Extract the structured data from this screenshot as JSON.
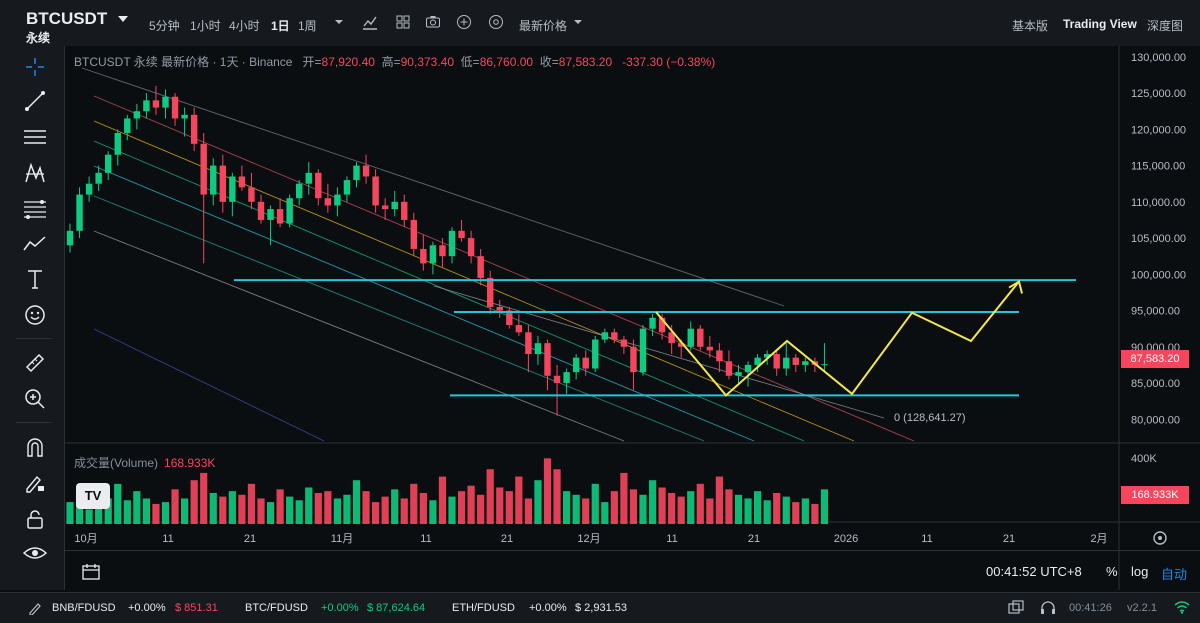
{
  "header": {
    "symbol": "BTCUSDT",
    "contract": "永续",
    "intervals": [
      "5分钟",
      "1小时",
      "4小时",
      "1日",
      "1周"
    ],
    "active_interval": "1日",
    "price_type": "最新价格",
    "views": [
      "基本版",
      "Trading View",
      "深度图"
    ],
    "active_view": "Trading View"
  },
  "legend": {
    "title": "BTCUSDT 永续 最新价格 · 1天 · Binance",
    "open_label": "开=",
    "open": "87,920.40",
    "high_label": "高=",
    "high": "90,373.40",
    "low_label": "低=",
    "low": "86,760.00",
    "close_label": "收=",
    "close": "87,583.20",
    "change": "-337.30 (−0.38%)"
  },
  "volume": {
    "label": "成交量(Volume)",
    "value": "168.933K",
    "axis_label": "400K"
  },
  "price_axis": {
    "ticks": [
      "130,000.00",
      "125,000.00",
      "120,000.00",
      "115,000.00",
      "110,000.00",
      "105,000.00",
      "100,000.00",
      "95,000.00",
      "90,000.00",
      "85,000.00",
      "80,000.00"
    ],
    "last_price": "87,583.20"
  },
  "time_axis": {
    "ticks": [
      "10月",
      "11",
      "21",
      "11月",
      "11",
      "21",
      "12月",
      "11",
      "21",
      "2026",
      "11",
      "21",
      "2月"
    ]
  },
  "annotation": {
    "fib_label": "0 (128,641.27)"
  },
  "footer": {
    "clock": "00:41:52 UTC+8",
    "percent": "%",
    "log": "log",
    "auto": "自动"
  },
  "statusbar": {
    "tickers": [
      {
        "pair": "BNB/FDUSD",
        "change": "+0.00%",
        "price": "$ 851.31"
      },
      {
        "pair": "BTC/FDUSD",
        "change": "+0.00%",
        "price": "$ 87,624.64"
      },
      {
        "pair": "ETH/FDUSD",
        "change": "+0.00%",
        "price": "$ 2,931.53"
      }
    ],
    "time": "00:41:26",
    "version": "v2.2.1"
  },
  "chart_data": {
    "type": "candlestick",
    "y_range": [
      77000,
      131500
    ],
    "candles": [
      [
        104000,
        107000,
        103000,
        106000
      ],
      [
        106000,
        112000,
        105000,
        111000
      ],
      [
        111000,
        113500,
        110000,
        112500
      ],
      [
        112500,
        115000,
        111500,
        114000
      ],
      [
        114000,
        117000,
        113000,
        116500
      ],
      [
        116500,
        120000,
        115000,
        119500
      ],
      [
        119500,
        122000,
        118500,
        121500
      ],
      [
        121500,
        123500,
        120000,
        122500
      ],
      [
        122500,
        125000,
        121500,
        124000
      ],
      [
        124000,
        126000,
        122000,
        123000
      ],
      [
        123000,
        125500,
        121500,
        124500
      ],
      [
        124500,
        125000,
        120500,
        121500
      ],
      [
        121500,
        123000,
        119000,
        122000
      ],
      [
        122000,
        123000,
        117000,
        118000
      ],
      [
        118000,
        119500,
        101500,
        111000
      ],
      [
        111000,
        116000,
        109500,
        115000
      ],
      [
        115000,
        116500,
        108500,
        110000
      ],
      [
        110000,
        114000,
        108000,
        113500
      ],
      [
        113500,
        115000,
        111500,
        112000
      ],
      [
        112000,
        114000,
        109000,
        110000
      ],
      [
        110000,
        111000,
        107000,
        107500
      ],
      [
        107500,
        109500,
        104000,
        109000
      ],
      [
        109000,
        110500,
        106500,
        107000
      ],
      [
        107000,
        111000,
        106500,
        110500
      ],
      [
        110500,
        113000,
        109500,
        112500
      ],
      [
        112500,
        115500,
        111000,
        114000
      ],
      [
        114000,
        114500,
        109500,
        110500
      ],
      [
        110500,
        112500,
        108500,
        109500
      ],
      [
        109500,
        112000,
        108000,
        111000
      ],
      [
        111000,
        113500,
        110000,
        113000
      ],
      [
        113000,
        115500,
        112000,
        115000
      ],
      [
        115000,
        116500,
        112500,
        113500
      ],
      [
        113500,
        114500,
        108500,
        109500
      ],
      [
        109500,
        110500,
        107500,
        109000
      ],
      [
        109000,
        111500,
        108000,
        110000
      ],
      [
        110000,
        111000,
        106500,
        107500
      ],
      [
        107500,
        108500,
        102500,
        103500
      ],
      [
        103500,
        105500,
        100500,
        101500
      ],
      [
        101500,
        104500,
        100000,
        104000
      ],
      [
        104000,
        105000,
        101000,
        102500
      ],
      [
        102500,
        106500,
        101500,
        106000
      ],
      [
        106000,
        107500,
        104500,
        105000
      ],
      [
        105000,
        106000,
        101500,
        102500
      ],
      [
        102500,
        103500,
        98500,
        99500
      ],
      [
        99500,
        100500,
        94500,
        95500
      ],
      [
        95500,
        96500,
        94000,
        95000
      ],
      [
        95000,
        95500,
        92500,
        93000
      ],
      [
        93000,
        94500,
        91500,
        92000
      ],
      [
        92000,
        93000,
        86500,
        89000
      ],
      [
        89000,
        91500,
        87500,
        90500
      ],
      [
        90500,
        91000,
        84000,
        86000
      ],
      [
        86000,
        87500,
        80500,
        85000
      ],
      [
        85000,
        87000,
        83500,
        86500
      ],
      [
        86500,
        89000,
        85500,
        88500
      ],
      [
        88500,
        89500,
        86000,
        87000
      ],
      [
        87000,
        91500,
        86500,
        91000
      ],
      [
        91000,
        92500,
        90500,
        92000
      ],
      [
        92000,
        92500,
        90500,
        91000
      ],
      [
        91000,
        91500,
        89000,
        90000
      ],
      [
        90000,
        91000,
        84000,
        86500
      ],
      [
        86500,
        93000,
        86000,
        92500
      ],
      [
        92500,
        94500,
        91500,
        94000
      ],
      [
        94000,
        94500,
        91000,
        92000
      ],
      [
        92000,
        93000,
        89000,
        90500
      ],
      [
        90500,
        91000,
        88500,
        90000
      ],
      [
        90000,
        93500,
        89500,
        92500
      ],
      [
        92500,
        93000,
        89500,
        90000
      ],
      [
        90000,
        91500,
        88500,
        89500
      ],
      [
        89500,
        90500,
        86500,
        88000
      ],
      [
        88000,
        89500,
        85500,
        86000
      ],
      [
        86000,
        87500,
        85000,
        86500
      ],
      [
        86500,
        88000,
        84500,
        87500
      ],
      [
        87500,
        89000,
        86500,
        88500
      ],
      [
        88500,
        89500,
        87500,
        89000
      ],
      [
        89000,
        89500,
        86000,
        87000
      ],
      [
        87000,
        90500,
        86000,
        88500
      ],
      [
        88500,
        89000,
        86500,
        87500
      ],
      [
        87500,
        88500,
        86500,
        88000
      ],
      [
        88000,
        88500,
        86500,
        87500
      ],
      [
        87500,
        90500,
        86500,
        87600
      ]
    ],
    "volumes": [
      60,
      80,
      40,
      90,
      70,
      110,
      65,
      90,
      70,
      55,
      60,
      95,
      70,
      120,
      140,
      85,
      75,
      90,
      80,
      110,
      70,
      60,
      95,
      75,
      65,
      100,
      85,
      90,
      70,
      80,
      120,
      90,
      60,
      75,
      95,
      70,
      110,
      85,
      65,
      130,
      75,
      90,
      105,
      80,
      150,
      100,
      90,
      130,
      70,
      120,
      180,
      150,
      90,
      80,
      70,
      110,
      60,
      90,
      140,
      95,
      80,
      120,
      100,
      85,
      75,
      90,
      110,
      70,
      130,
      95,
      80,
      70,
      90,
      65,
      85,
      75,
      60,
      70,
      55,
      95
    ]
  },
  "drawings": {
    "horizontal_levels": [
      99200,
      94800,
      83300
    ],
    "projection_path": [
      [
        88200,
        94800
      ],
      [
        92000,
        83300
      ],
      [
        96000,
        90900
      ],
      [
        92500,
        83500
      ],
      [
        88100,
        83200
      ],
      [
        94800,
        94700
      ],
      [
        90800,
        90800
      ],
      [
        98800,
        99000
      ]
    ]
  }
}
